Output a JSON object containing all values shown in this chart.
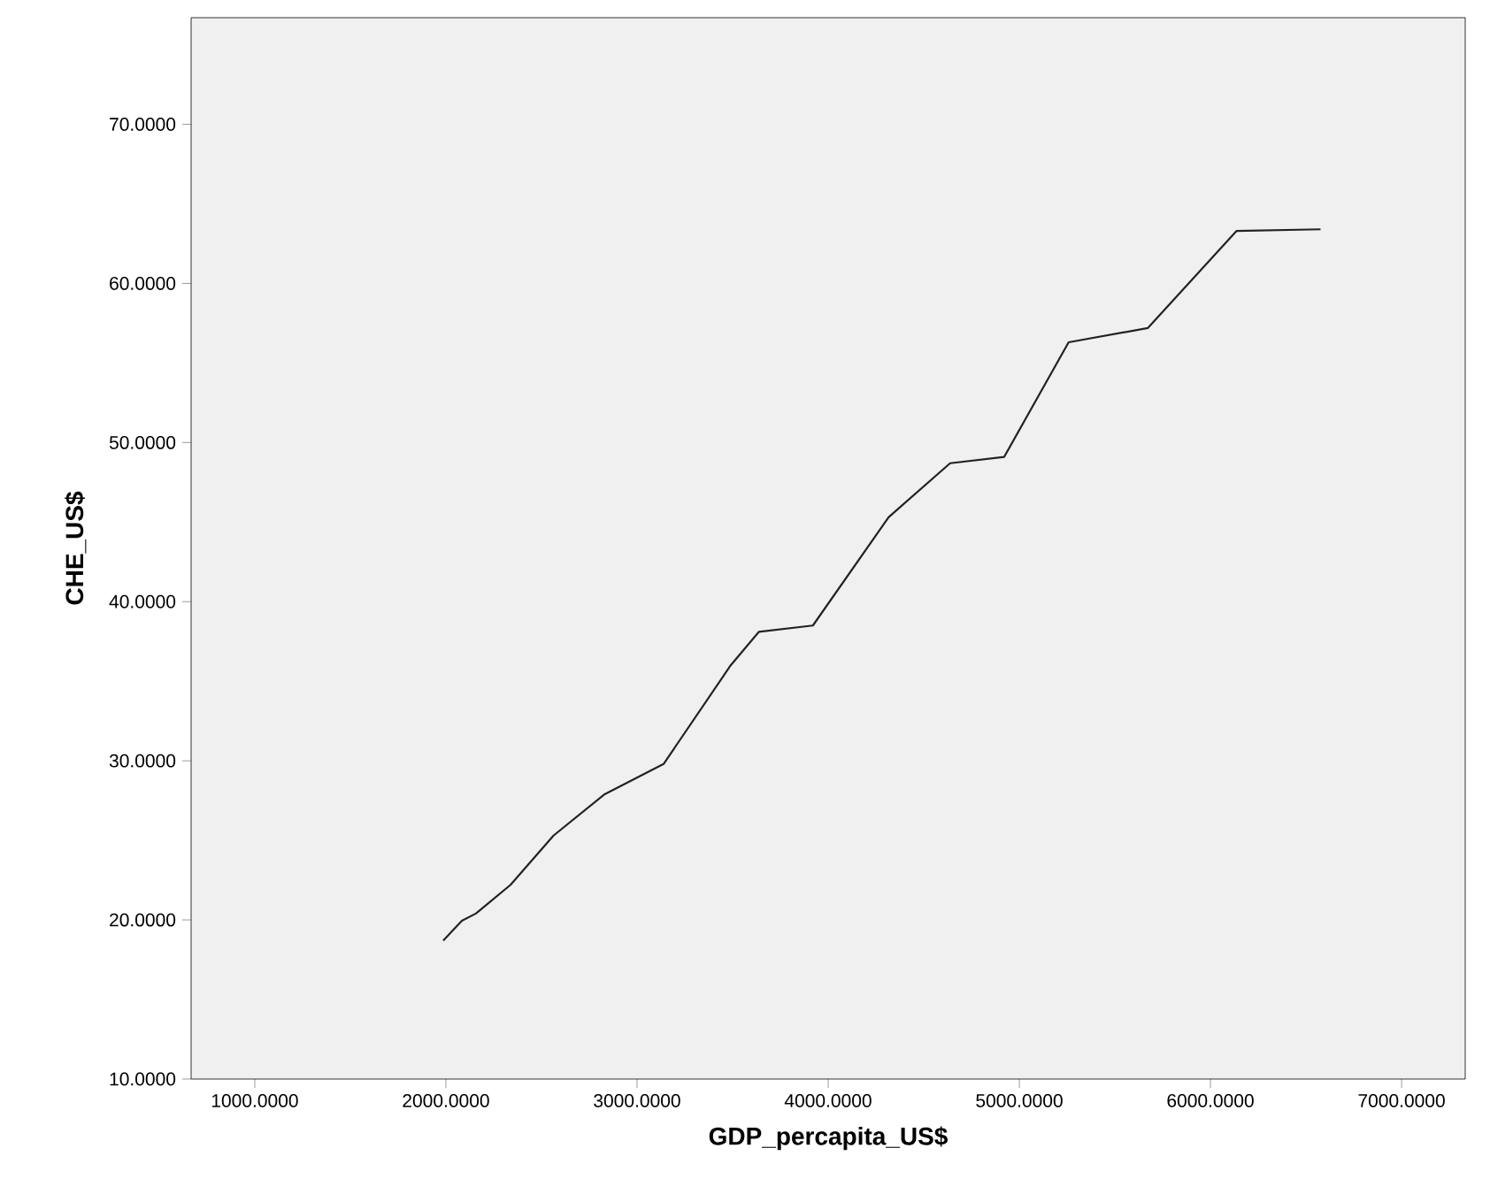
{
  "chart_data": {
    "type": "line",
    "xlabel": "GDP_percapita_US$",
    "ylabel": "CHE_US$",
    "xlim": [
      667,
      7333
    ],
    "ylim": [
      10,
      76.7
    ],
    "xticks": [
      {
        "value": 1000,
        "label": "1000.0000"
      },
      {
        "value": 2000,
        "label": "2000.0000"
      },
      {
        "value": 3000,
        "label": "3000.0000"
      },
      {
        "value": 4000,
        "label": "4000.0000"
      },
      {
        "value": 5000,
        "label": "5000.0000"
      },
      {
        "value": 6000,
        "label": "6000.0000"
      },
      {
        "value": 7000,
        "label": "7000.0000"
      }
    ],
    "yticks": [
      {
        "value": 10,
        "label": "10.0000"
      },
      {
        "value": 20,
        "label": "20.0000"
      },
      {
        "value": 30,
        "label": "30.0000"
      },
      {
        "value": 40,
        "label": "40.0000"
      },
      {
        "value": 50,
        "label": "50.0000"
      },
      {
        "value": 60,
        "label": "60.0000"
      },
      {
        "value": 70,
        "label": "70.0000"
      }
    ],
    "x": [
      1986,
      2084,
      2157,
      2338,
      2563,
      2831,
      3139,
      3490,
      3637,
      3920,
      4316,
      4638,
      4921,
      5258,
      5673,
      6137,
      6576
    ],
    "series": [
      {
        "color": "#222222",
        "values": [
          18.7,
          19.95,
          20.4,
          22.2,
          25.3,
          27.9,
          29.8,
          36.0,
          38.1,
          38.5,
          45.3,
          48.7,
          49.1,
          56.3,
          57.2,
          63.3,
          63.4
        ]
      }
    ]
  }
}
